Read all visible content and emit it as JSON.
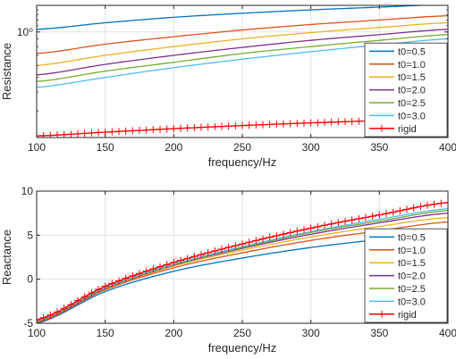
{
  "chart_data": [
    {
      "type": "line",
      "xlabel": "frequency/Hz",
      "ylabel": "Resistance",
      "xlim": [
        100,
        400
      ],
      "ylim": [
        0.2,
        1.5
      ],
      "yscale": "log",
      "xticks": [
        100,
        150,
        200,
        250,
        300,
        350,
        400
      ],
      "xtick_labels": [
        "100",
        "150",
        "200",
        "250",
        "300",
        "350",
        "400"
      ],
      "yticks": [
        1
      ],
      "ytick_labels": [
        "10⁰"
      ],
      "grid": true,
      "legend": "bottom-right",
      "x": [
        100,
        150,
        200,
        250,
        300,
        350,
        400
      ],
      "series": [
        {
          "name": "t0=0.5",
          "color": "#0072BD",
          "values": [
            1.04,
            1.15,
            1.25,
            1.33,
            1.4,
            1.46,
            1.52
          ]
        },
        {
          "name": "t0=1.0",
          "color": "#D95319",
          "values": [
            0.72,
            0.83,
            0.93,
            1.03,
            1.12,
            1.2,
            1.28
          ]
        },
        {
          "name": "t0=1.5",
          "color": "#EDB120",
          "values": [
            0.6,
            0.7,
            0.8,
            0.9,
            0.99,
            1.07,
            1.15
          ]
        },
        {
          "name": "t0=2.0",
          "color": "#7E2F8E",
          "values": [
            0.52,
            0.61,
            0.7,
            0.79,
            0.88,
            0.96,
            1.04
          ]
        },
        {
          "name": "t0=2.5",
          "color": "#77AC30",
          "values": [
            0.47,
            0.55,
            0.63,
            0.72,
            0.8,
            0.88,
            0.96
          ]
        },
        {
          "name": "t0=3.0",
          "color": "#4DBEEE",
          "values": [
            0.43,
            0.5,
            0.58,
            0.66,
            0.74,
            0.82,
            0.9
          ]
        },
        {
          "name": "rigid",
          "color": "#FF0000",
          "marker": "+",
          "values": [
            0.205,
            0.217,
            0.229,
            0.24,
            0.25,
            0.259,
            0.268
          ]
        }
      ]
    },
    {
      "type": "line",
      "xlabel": "frequency/Hz",
      "ylabel": "Reactance",
      "xlim": [
        100,
        400
      ],
      "ylim": [
        -5,
        10
      ],
      "xticks": [
        100,
        150,
        200,
        250,
        300,
        350,
        400
      ],
      "xtick_labels": [
        "100",
        "150",
        "200",
        "250",
        "300",
        "350",
        "400"
      ],
      "yticks": [
        -5,
        0,
        5,
        10
      ],
      "ytick_labels": [
        "-5",
        "0",
        "5",
        "10"
      ],
      "grid": true,
      "legend": "bottom-right",
      "x": [
        100,
        150,
        200,
        250,
        300,
        350,
        400
      ],
      "series": [
        {
          "name": "t0=0.5",
          "color": "#0072BD",
          "values": [
            -5.0,
            -1.4,
            0.9,
            2.4,
            3.6,
            4.5,
            5.2
          ]
        },
        {
          "name": "t0=1.0",
          "color": "#D95319",
          "values": [
            -4.9,
            -1.2,
            1.3,
            3.0,
            4.4,
            5.5,
            6.5
          ]
        },
        {
          "name": "t0=1.5",
          "color": "#EDB120",
          "values": [
            -4.8,
            -1.1,
            1.5,
            3.3,
            4.8,
            6.0,
            7.0
          ]
        },
        {
          "name": "t0=2.0",
          "color": "#7E2F8E",
          "values": [
            -4.75,
            -1.05,
            1.6,
            3.5,
            5.1,
            6.4,
            7.5
          ]
        },
        {
          "name": "t0=2.5",
          "color": "#77AC30",
          "values": [
            -4.7,
            -1.0,
            1.65,
            3.6,
            5.3,
            6.6,
            7.8
          ]
        },
        {
          "name": "t0=3.0",
          "color": "#4DBEEE",
          "values": [
            -4.7,
            -0.95,
            1.7,
            3.7,
            5.4,
            6.8,
            8.0
          ]
        },
        {
          "name": "rigid",
          "color": "#FF0000",
          "marker": "+",
          "values": [
            -4.6,
            -0.8,
            1.9,
            4.0,
            5.8,
            7.3,
            8.7
          ]
        }
      ]
    }
  ]
}
